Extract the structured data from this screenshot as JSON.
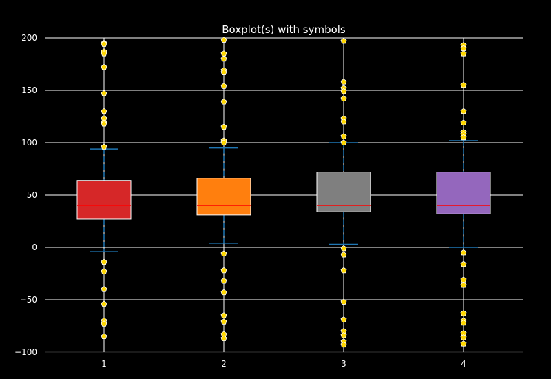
{
  "chart_data": {
    "type": "boxplot",
    "title": "Boxplot(s) with symbols",
    "xlabel": "",
    "ylabel": "",
    "categories": [
      "1",
      "2",
      "3",
      "4"
    ],
    "ylim": [
      -100,
      200
    ],
    "yticks": [
      -100,
      -50,
      0,
      50,
      100,
      150,
      200
    ],
    "ytick_labels": [
      "−100",
      "−50",
      "0",
      "50",
      "100",
      "150",
      "200"
    ],
    "grid": "horizontal",
    "colors": {
      "background": "#000000",
      "grid": "#ffffff",
      "median": "#ff0000",
      "whisker": "#1f77b4",
      "flier_fill": "#ffd700",
      "flier_edge": "#ffffff",
      "box_edge": "#ffffff"
    },
    "boxes": [
      {
        "label": "1",
        "color": "#d62728",
        "q1": 27,
        "median": 40,
        "q3": 64,
        "whisker_low": -4,
        "whisker_high": 94,
        "fliers": [
          195,
          194,
          187,
          185,
          172,
          147,
          130,
          123,
          119,
          118,
          96,
          -14,
          -23,
          -40,
          -54,
          -70,
          -73,
          -85
        ]
      },
      {
        "label": "2",
        "color": "#ff7f0e",
        "q1": 31,
        "median": 40,
        "q3": 66,
        "whisker_low": 4,
        "whisker_high": 95,
        "fliers": [
          198,
          185,
          180,
          169,
          167,
          154,
          139,
          115,
          102,
          100,
          -6,
          -22,
          -32,
          -43,
          -65,
          -71,
          -83,
          -87
        ]
      },
      {
        "label": "3",
        "color": "#7f7f7f",
        "q1": 34,
        "median": 40,
        "q3": 72,
        "whisker_low": 3,
        "whisker_high": 100,
        "fliers": [
          197,
          158,
          152,
          149,
          142,
          123,
          120,
          106,
          100,
          -1,
          -7,
          -22,
          -52,
          -69,
          -80,
          -84,
          -90,
          -93
        ]
      },
      {
        "label": "4",
        "color": "#9467bd",
        "q1": 32,
        "median": 40,
        "q3": 72,
        "whisker_low": 0,
        "whisker_high": 102,
        "fliers": [
          193,
          190,
          185,
          155,
          130,
          119,
          110,
          108,
          105,
          -5,
          -16,
          -31,
          -36,
          -63,
          -70,
          -72,
          -82,
          -86,
          -92
        ]
      }
    ]
  }
}
